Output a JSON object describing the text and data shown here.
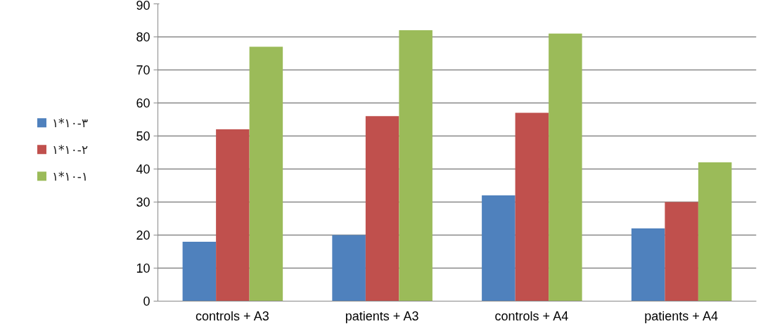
{
  "chart_data": {
    "type": "bar",
    "categories": [
      "controls + A3",
      "patients + A3",
      "controls + A4",
      "patients + A4"
    ],
    "series": [
      {
        "name": "١*١٠-٣",
        "color": "#4f81bd",
        "values": [
          18,
          20,
          32,
          22
        ]
      },
      {
        "name": "١*١٠-٢",
        "color": "#c0504d",
        "values": [
          52,
          56,
          57,
          30
        ]
      },
      {
        "name": "١*١٠-١",
        "color": "#9bbb59",
        "values": [
          77,
          82,
          81,
          42
        ]
      }
    ],
    "ylim": [
      0,
      90
    ],
    "yticks": [
      0,
      10,
      20,
      30,
      40,
      50,
      60,
      70,
      80,
      90
    ],
    "grid": "y",
    "legend": "left"
  }
}
